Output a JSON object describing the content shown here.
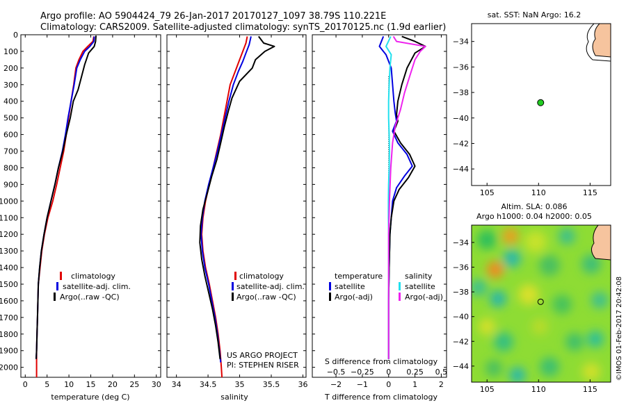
{
  "header": {
    "line1": "Argo profile: AO 5904424_79 26-Jan-2017 20170127_1097 38.79S 110.221E",
    "line2": "Climatology: CARS2009. Satellite-adjusted climatology: synTS_20170125.nc (1.9d earlier)"
  },
  "side_stamp": "©IMOS 01-Feb-2017 20:42:08",
  "colors": {
    "climatology": "#e00000",
    "satellite": "#0000e0",
    "argo": "#000000",
    "salinity_satellite": "#22e0ee",
    "salinity_argo": "#ee22ee",
    "float_marker": "#22cc22",
    "land": "#f6c49e"
  },
  "chart_data": [
    {
      "type": "line",
      "id": "temperature-profile",
      "xlabel": "temperature (deg C)",
      "xlim": [
        -1,
        31
      ],
      "xticks": [
        0,
        5,
        10,
        15,
        20,
        25,
        30
      ],
      "ylim": [
        2060,
        0
      ],
      "yticks": [
        0,
        100,
        200,
        300,
        400,
        500,
        600,
        700,
        800,
        900,
        1000,
        1100,
        1200,
        1300,
        1400,
        1500,
        1600,
        1700,
        1800,
        1900,
        2000
      ],
      "legend": [
        "climatology",
        "satellite-adj. clim.",
        "Argo(..raw -QC)"
      ],
      "legend_position": "lower-right",
      "series": [
        {
          "name": "climatology",
          "color_key": "climatology",
          "points": [
            [
              15.7,
              10
            ],
            [
              15.5,
              40
            ],
            [
              14.3,
              70
            ],
            [
              13.2,
              100
            ],
            [
              12.3,
              150
            ],
            [
              11.6,
              200
            ],
            [
              11.1,
              300
            ],
            [
              10.5,
              400
            ],
            [
              9.9,
              500
            ],
            [
              9.4,
              600
            ],
            [
              8.8,
              700
            ],
            [
              8.0,
              800
            ],
            [
              7.2,
              900
            ],
            [
              6.3,
              1000
            ],
            [
              5.2,
              1100
            ],
            [
              4.4,
              1200
            ],
            [
              3.8,
              1300
            ],
            [
              3.4,
              1400
            ],
            [
              3.0,
              1500
            ],
            [
              2.9,
              1600
            ],
            [
              2.8,
              1700
            ],
            [
              2.7,
              1800
            ],
            [
              2.6,
              1900
            ],
            [
              2.6,
              2000
            ],
            [
              2.6,
              2060
            ]
          ]
        },
        {
          "name": "satellite-adj. clim.",
          "color_key": "satellite",
          "points": [
            [
              15.8,
              10
            ],
            [
              15.7,
              40
            ],
            [
              14.8,
              70
            ],
            [
              13.6,
              100
            ],
            [
              12.6,
              150
            ],
            [
              11.8,
              200
            ],
            [
              11.2,
              300
            ],
            [
              10.5,
              400
            ],
            [
              9.8,
              500
            ],
            [
              9.2,
              600
            ],
            [
              8.5,
              700
            ],
            [
              7.6,
              800
            ],
            [
              6.8,
              900
            ],
            [
              5.9,
              1000
            ],
            [
              5.0,
              1100
            ],
            [
              4.3,
              1200
            ],
            [
              3.7,
              1300
            ],
            [
              3.3,
              1400
            ],
            [
              3.0,
              1500
            ],
            [
              2.9,
              1600
            ],
            [
              2.8,
              1700
            ],
            [
              2.7,
              1800
            ],
            [
              2.6,
              1900
            ],
            [
              2.5,
              1950
            ]
          ]
        },
        {
          "name": "Argo(..raw -QC)",
          "color_key": "argo",
          "points": [
            [
              16.2,
              5
            ],
            [
              16.1,
              40
            ],
            [
              15.8,
              70
            ],
            [
              14.5,
              110
            ],
            [
              13.6,
              180
            ],
            [
              12.8,
              260
            ],
            [
              12.1,
              330
            ],
            [
              11.0,
              400
            ],
            [
              10.3,
              500
            ],
            [
              9.4,
              600
            ],
            [
              8.6,
              700
            ],
            [
              7.6,
              800
            ],
            [
              6.8,
              900
            ],
            [
              5.9,
              1000
            ],
            [
              5.0,
              1100
            ],
            [
              4.3,
              1200
            ],
            [
              3.7,
              1300
            ],
            [
              3.3,
              1400
            ],
            [
              3.0,
              1500
            ],
            [
              2.9,
              1600
            ],
            [
              2.8,
              1700
            ],
            [
              2.7,
              1800
            ],
            [
              2.6,
              1900
            ],
            [
              2.5,
              1950
            ]
          ]
        }
      ]
    },
    {
      "type": "line",
      "id": "salinity-profile",
      "xlabel": "salinity",
      "xlim": [
        33.85,
        36.05
      ],
      "xticks": [
        34,
        34.5,
        35,
        35.5,
        36
      ],
      "xticklabels": [
        "34",
        "34.5",
        "35",
        "35.5",
        "36"
      ],
      "ylim": [
        2060,
        0
      ],
      "legend": [
        "climatology",
        "satellite-adj. clim.",
        "Argo(..raw -QC)"
      ],
      "legend_position": "lower-right",
      "annotations": [
        "US ARGO PROJECT",
        "PI: STEPHEN RISER"
      ],
      "series": [
        {
          "name": "climatology",
          "color_key": "climatology",
          "points": [
            [
              35.12,
              10
            ],
            [
              35.1,
              50
            ],
            [
              35.05,
              100
            ],
            [
              35.0,
              150
            ],
            [
              34.95,
              200
            ],
            [
              34.85,
              300
            ],
            [
              34.8,
              400
            ],
            [
              34.75,
              500
            ],
            [
              34.7,
              600
            ],
            [
              34.64,
              700
            ],
            [
              34.58,
              800
            ],
            [
              34.52,
              900
            ],
            [
              34.46,
              1000
            ],
            [
              34.42,
              1100
            ],
            [
              34.4,
              1200
            ],
            [
              34.42,
              1300
            ],
            [
              34.46,
              1400
            ],
            [
              34.52,
              1500
            ],
            [
              34.57,
              1600
            ],
            [
              34.62,
              1700
            ],
            [
              34.66,
              1800
            ],
            [
              34.69,
              1900
            ],
            [
              34.71,
              2000
            ],
            [
              34.72,
              2060
            ]
          ]
        },
        {
          "name": "satellite-adj. clim.",
          "color_key": "satellite",
          "points": [
            [
              35.18,
              10
            ],
            [
              35.15,
              60
            ],
            [
              35.1,
              110
            ],
            [
              35.05,
              160
            ],
            [
              34.98,
              220
            ],
            [
              34.9,
              300
            ],
            [
              34.83,
              400
            ],
            [
              34.77,
              500
            ],
            [
              34.71,
              600
            ],
            [
              34.65,
              700
            ],
            [
              34.58,
              800
            ],
            [
              34.51,
              900
            ],
            [
              34.45,
              1000
            ],
            [
              34.41,
              1100
            ],
            [
              34.39,
              1200
            ],
            [
              34.41,
              1300
            ],
            [
              34.45,
              1400
            ],
            [
              34.51,
              1500
            ],
            [
              34.56,
              1600
            ],
            [
              34.61,
              1700
            ],
            [
              34.65,
              1800
            ],
            [
              34.68,
              1900
            ],
            [
              34.7,
              1970
            ]
          ]
        },
        {
          "name": "Argo(..raw -QC)",
          "color_key": "argo",
          "points": [
            [
              35.3,
              10
            ],
            [
              35.38,
              50
            ],
            [
              35.55,
              70
            ],
            [
              35.4,
              100
            ],
            [
              35.25,
              150
            ],
            [
              35.2,
              200
            ],
            [
              35.0,
              280
            ],
            [
              34.88,
              380
            ],
            [
              34.82,
              460
            ],
            [
              34.76,
              550
            ],
            [
              34.7,
              650
            ],
            [
              34.64,
              750
            ],
            [
              34.56,
              850
            ],
            [
              34.49,
              950
            ],
            [
              34.42,
              1050
            ],
            [
              34.38,
              1150
            ],
            [
              34.37,
              1250
            ],
            [
              34.4,
              1350
            ],
            [
              34.45,
              1450
            ],
            [
              34.51,
              1550
            ],
            [
              34.57,
              1650
            ],
            [
              34.62,
              1750
            ],
            [
              34.66,
              1850
            ],
            [
              34.69,
              1950
            ]
          ]
        }
      ]
    },
    {
      "type": "line",
      "id": "difference-profile",
      "xlabel": "T difference from climatology",
      "xlabel_top": "S difference from climatology",
      "xlim": [
        -2.9,
        2.2
      ],
      "xticks": [
        -2,
        -1,
        0,
        1,
        2
      ],
      "s_xticks": [
        -0.5,
        -0.25,
        0,
        0.25,
        0.5
      ],
      "s_xticklabels": [
        "−0.5",
        "−0.25",
        "0",
        "0.25",
        "0.5"
      ],
      "s_scale": 4,
      "ylim": [
        2060,
        0
      ],
      "legend_temperature": {
        "title": "temperature",
        "entries": [
          "satellite",
          "Argo(-adj)"
        ]
      },
      "legend_salinity": {
        "title": "salinity",
        "entries": [
          "satellite",
          "Argo(-adj)"
        ]
      },
      "series": [
        {
          "name": "temperature satellite",
          "color_key": "satellite",
          "points": [
            [
              -0.2,
              10
            ],
            [
              -0.35,
              70
            ],
            [
              -0.1,
              120
            ],
            [
              0.1,
              200
            ],
            [
              0.15,
              300
            ],
            [
              0.2,
              400
            ],
            [
              0.25,
              470
            ],
            [
              0.3,
              520
            ],
            [
              0.15,
              580
            ],
            [
              0.35,
              650
            ],
            [
              0.7,
              720
            ],
            [
              0.9,
              790
            ],
            [
              0.6,
              850
            ],
            [
              0.3,
              920
            ],
            [
              0.15,
              1000
            ],
            [
              0.1,
              1100
            ],
            [
              0.05,
              1200
            ],
            [
              0.02,
              1400
            ],
            [
              0.0,
              1600
            ],
            [
              0.0,
              1800
            ],
            [
              0.0,
              1950
            ]
          ]
        },
        {
          "name": "temperature Argo(-adj)",
          "color_key": "argo",
          "points": [
            [
              0.5,
              10
            ],
            [
              1.0,
              40
            ],
            [
              1.4,
              70
            ],
            [
              1.0,
              110
            ],
            [
              0.7,
              200
            ],
            [
              0.5,
              300
            ],
            [
              0.35,
              400
            ],
            [
              0.3,
              480
            ],
            [
              0.35,
              520
            ],
            [
              0.2,
              580
            ],
            [
              0.45,
              650
            ],
            [
              0.8,
              720
            ],
            [
              1.0,
              790
            ],
            [
              0.75,
              860
            ],
            [
              0.4,
              930
            ],
            [
              0.2,
              1000
            ],
            [
              0.1,
              1100
            ],
            [
              0.05,
              1200
            ],
            [
              0.02,
              1400
            ],
            [
              0.0,
              1600
            ],
            [
              0.0,
              1800
            ],
            [
              0.0,
              1950
            ]
          ]
        },
        {
          "name": "salinity satellite",
          "color_key": "salinity_satellite",
          "points": [
            [
              0.08,
              10
            ],
            [
              -0.1,
              70
            ],
            [
              0.1,
              120
            ],
            [
              0.05,
              200
            ],
            [
              0.02,
              300
            ],
            [
              0.0,
              400
            ],
            [
              0.0,
              500
            ],
            [
              0.02,
              600
            ],
            [
              0.03,
              700
            ],
            [
              0.02,
              800
            ],
            [
              0.0,
              900
            ],
            [
              -0.01,
              1000
            ],
            [
              -0.01,
              1100
            ],
            [
              0.0,
              1200
            ],
            [
              0.0,
              1400
            ],
            [
              0.0,
              1600
            ],
            [
              0.0,
              1800
            ],
            [
              0.0,
              1950
            ]
          ]
        },
        {
          "name": "salinity Argo(-adj)",
          "color_key": "salinity_argo",
          "points": [
            [
              0.18,
              10
            ],
            [
              0.3,
              40
            ],
            [
              1.4,
              70
            ],
            [
              1.2,
              100
            ],
            [
              1.0,
              150
            ],
            [
              0.8,
              250
            ],
            [
              0.6,
              350
            ],
            [
              0.45,
              450
            ],
            [
              0.25,
              550
            ],
            [
              0.15,
              650
            ],
            [
              0.08,
              800
            ],
            [
              0.03,
              1000
            ],
            [
              0.0,
              1200
            ],
            [
              0.0,
              1500
            ],
            [
              0.0,
              1800
            ],
            [
              0.0,
              1950
            ]
          ]
        }
      ]
    },
    {
      "type": "scatter",
      "id": "location-map",
      "title": "sat. SST: NaN Argo: 16.2",
      "xlim": [
        103.5,
        117
      ],
      "ylim": [
        -45.3,
        -32.6
      ],
      "xticks": [
        105,
        110,
        115
      ],
      "yticks": [
        -34,
        -36,
        -38,
        -40,
        -42,
        -44
      ],
      "float_position": [
        110.2,
        -38.8
      ]
    },
    {
      "type": "heatmap",
      "id": "sla-map",
      "title_lines": [
        "Altim. SLA: 0.086",
        "Argo h1000: 0.04 h2000: 0.05"
      ],
      "xlim": [
        103.5,
        117
      ],
      "ylim": [
        -45.3,
        -32.6
      ],
      "xticks": [
        105,
        110,
        115
      ],
      "yticks": [
        -34,
        -36,
        -38,
        -40,
        -42,
        -44
      ],
      "float_position": [
        110.2,
        -38.8
      ]
    }
  ]
}
